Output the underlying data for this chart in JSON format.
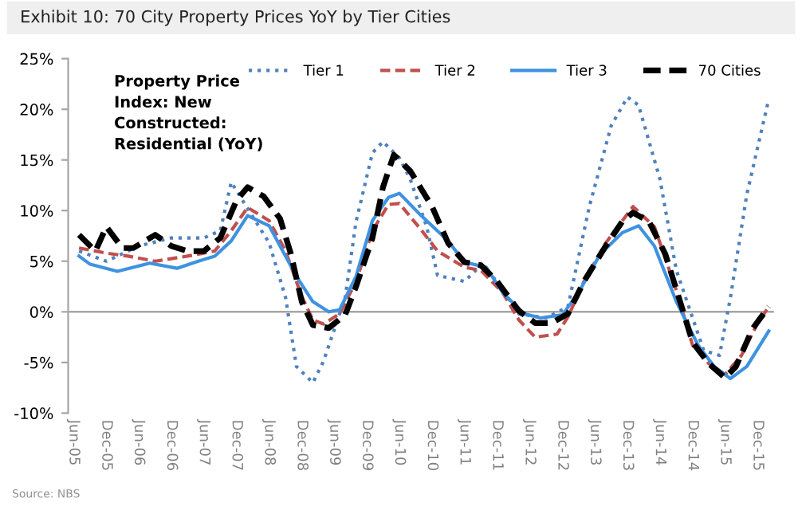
{
  "chart_data": {
    "type": "line",
    "title": "Exhibit 10: 70 City Property Prices YoY by Tier Cities",
    "annotations": [
      "Property Price\nIndex: New\nConstructed:\nResidential (YoY)",
      "Source: NBS"
    ],
    "series": [
      {
        "name": "Tier 1",
        "color": "#4f81bd",
        "line_style": "dotted",
        "x": [
          "2005-07",
          "2005-12",
          "2006-06",
          "2006-12",
          "2007-06",
          "2007-09",
          "2007-11",
          "2008-06",
          "2008-09",
          "2008-11",
          "2009-02",
          "2009-04",
          "2009-08",
          "2009-10",
          "2010-01",
          "2010-03",
          "2010-06",
          "2010-08",
          "2010-11",
          "2011-01",
          "2011-06",
          "2011-09",
          "2011-12",
          "2012-04",
          "2012-09",
          "2013-01",
          "2013-05",
          "2013-09",
          "2013-12",
          "2014-02",
          "2014-06",
          "2014-09",
          "2015-02",
          "2015-05",
          "2015-07",
          "2015-10",
          "2016-02"
        ],
        "values": [
          6.0,
          5.0,
          6.5,
          7.3,
          7.3,
          8.0,
          12.8,
          6.8,
          1.4,
          -5.4,
          -7.0,
          -4.9,
          1.4,
          8.9,
          15.7,
          16.8,
          15.2,
          13.1,
          8.4,
          3.6,
          3.0,
          4.6,
          3.0,
          -0.2,
          -0.6,
          0.5,
          10.4,
          18.4,
          21.2,
          20.4,
          13.1,
          4.1,
          -3.8,
          -4.3,
          1.4,
          11.6,
          21.0
        ]
      },
      {
        "name": "Tier 2",
        "color": "#c0504d",
        "line_style": "dashed",
        "x": [
          "2005-07",
          "2005-12",
          "2006-04",
          "2006-09",
          "2007-03",
          "2007-08",
          "2007-11",
          "2008-02",
          "2008-06",
          "2008-09",
          "2008-12",
          "2009-02",
          "2009-04",
          "2009-07",
          "2009-10",
          "2010-01",
          "2010-04",
          "2010-06",
          "2010-10",
          "2011-01",
          "2011-06",
          "2011-09",
          "2012-01",
          "2012-04",
          "2012-07",
          "2012-11",
          "2013-01",
          "2013-04",
          "2013-08",
          "2014-01",
          "2014-05",
          "2014-09",
          "2014-12",
          "2015-03",
          "2015-06",
          "2015-09",
          "2015-12",
          "2016-02"
        ],
        "values": [
          6.3,
          5.8,
          5.5,
          5.0,
          5.5,
          6.0,
          8.0,
          10.3,
          9.0,
          6.0,
          1.5,
          -0.8,
          -1.2,
          -0.2,
          3.0,
          8.0,
          10.6,
          10.7,
          8.1,
          6.0,
          4.4,
          4.1,
          1.9,
          -0.8,
          -2.5,
          -2.2,
          -0.5,
          3.0,
          6.8,
          10.4,
          8.4,
          2.1,
          -3.3,
          -5.1,
          -6.2,
          -4.3,
          -1.1,
          0.5
        ]
      },
      {
        "name": "Tier 3",
        "color": "#3f92e0",
        "line_style": "solid",
        "x": [
          "2005-07",
          "2005-09",
          "2006-02",
          "2006-08",
          "2007-01",
          "2007-05",
          "2007-08",
          "2007-11",
          "2008-02",
          "2008-06",
          "2008-08",
          "2008-11",
          "2009-02",
          "2009-05",
          "2009-07",
          "2009-10",
          "2010-01",
          "2010-04",
          "2010-06",
          "2010-10",
          "2011-03",
          "2011-06",
          "2011-10",
          "2012-01",
          "2012-05",
          "2012-08",
          "2012-12",
          "2013-03",
          "2013-07",
          "2013-11",
          "2014-02",
          "2014-05",
          "2014-09",
          "2015-01",
          "2015-04",
          "2015-07",
          "2015-10",
          "2016-02"
        ],
        "values": [
          5.5,
          4.7,
          4.0,
          4.8,
          4.3,
          5.0,
          5.5,
          7.0,
          9.5,
          8.5,
          6.5,
          3.5,
          1.0,
          0.0,
          0.2,
          3.5,
          9.0,
          11.3,
          11.7,
          9.5,
          7.0,
          4.9,
          4.4,
          1.9,
          -0.2,
          -0.6,
          -0.3,
          1.9,
          5.7,
          7.8,
          8.5,
          6.5,
          1.0,
          -3.3,
          -5.4,
          -6.6,
          -5.4,
          -1.9
        ]
      },
      {
        "name": "70 Cities",
        "color": "#000000",
        "line_style": "dashed",
        "x": [
          "2005-07",
          "2005-10",
          "2005-12",
          "2006-03",
          "2006-05",
          "2006-09",
          "2006-12",
          "2007-03",
          "2007-06",
          "2007-09",
          "2007-12",
          "2008-02",
          "2008-05",
          "2008-08",
          "2008-10",
          "2008-12",
          "2009-02",
          "2009-05",
          "2009-08",
          "2009-10",
          "2010-01",
          "2010-03",
          "2010-05",
          "2010-08",
          "2010-12",
          "2011-03",
          "2011-06",
          "2011-09",
          "2011-12",
          "2012-04",
          "2012-07",
          "2012-10",
          "2013-01",
          "2013-04",
          "2013-08",
          "2013-11",
          "2014-01",
          "2014-04",
          "2014-07",
          "2014-10",
          "2014-12",
          "2015-03",
          "2015-06",
          "2015-08",
          "2015-11",
          "2016-02"
        ],
        "values": [
          7.6,
          6.0,
          8.4,
          6.3,
          6.3,
          7.6,
          6.5,
          6.0,
          6.0,
          7.3,
          11.0,
          12.3,
          11.4,
          9.2,
          5.7,
          1.0,
          -1.3,
          -1.6,
          -0.3,
          2.5,
          7.3,
          12.3,
          15.5,
          13.9,
          10.4,
          6.8,
          4.9,
          4.6,
          3.0,
          0.1,
          -1.1,
          -1.1,
          -0.2,
          3.0,
          6.5,
          8.9,
          9.8,
          8.9,
          5.7,
          0.5,
          -3.0,
          -5.1,
          -6.5,
          -5.4,
          -1.7,
          0.5
        ]
      }
    ],
    "xlim": [
      "2005-05",
      "2016-03"
    ],
    "xticks": [
      {
        "value": "2005-06",
        "label": "Jun-05"
      },
      {
        "value": "2005-12",
        "label": "Dec-05"
      },
      {
        "value": "2006-06",
        "label": "Jun-06"
      },
      {
        "value": "2006-12",
        "label": "Dec-06"
      },
      {
        "value": "2007-06",
        "label": "Jun-07"
      },
      {
        "value": "2007-12",
        "label": "Dec-07"
      },
      {
        "value": "2008-06",
        "label": "Jun-08"
      },
      {
        "value": "2008-12",
        "label": "Dec-08"
      },
      {
        "value": "2009-06",
        "label": "Jun-09"
      },
      {
        "value": "2009-12",
        "label": "Dec-09"
      },
      {
        "value": "2010-06",
        "label": "Jun-10"
      },
      {
        "value": "2010-12",
        "label": "Dec-10"
      },
      {
        "value": "2011-06",
        "label": "Jun-11"
      },
      {
        "value": "2011-12",
        "label": "Dec-11"
      },
      {
        "value": "2012-06",
        "label": "Jun-12"
      },
      {
        "value": "2012-12",
        "label": "Dec-12"
      },
      {
        "value": "2013-06",
        "label": "Jun-13"
      },
      {
        "value": "2013-12",
        "label": "Dec-13"
      },
      {
        "value": "2014-06",
        "label": "Jun-14"
      },
      {
        "value": "2014-12",
        "label": "Dec-14"
      },
      {
        "value": "2015-06",
        "label": "Jun-15"
      },
      {
        "value": "2015-12",
        "label": "Dec-15"
      }
    ],
    "ylim": [
      -10,
      25
    ],
    "yticks": [
      {
        "value": -10,
        "label": "-10%"
      },
      {
        "value": -5,
        "label": "-5%"
      },
      {
        "value": 0,
        "label": "0%"
      },
      {
        "value": 5,
        "label": "5%"
      },
      {
        "value": 10,
        "label": "10%"
      },
      {
        "value": 15,
        "label": "15%"
      },
      {
        "value": 20,
        "label": "20%"
      },
      {
        "value": 25,
        "label": "25%"
      }
    ],
    "ref_lines": [
      {
        "axis": "y",
        "value": 0,
        "color": "#a6a6a6"
      }
    ],
    "grid": false,
    "legend": "top right",
    "marker": "none"
  }
}
